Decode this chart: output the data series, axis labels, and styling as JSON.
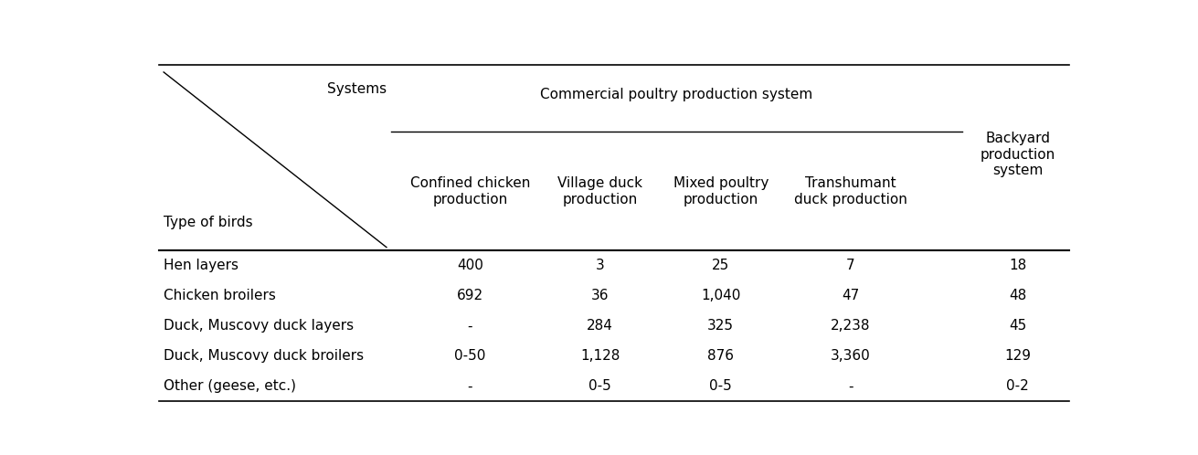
{
  "header_label_systems": "Systems",
  "header_label_type": "Type of birds",
  "commercial_header": "Commercial poultry production system",
  "backyard_header": "Backyard\nproduction\nsystem",
  "sub_headers": [
    "Confined chicken\nproduction",
    "Village duck\nproduction",
    "Mixed poultry\nproduction",
    "Transhumant\nduck production"
  ],
  "rows": [
    [
      "Hen layers",
      "400",
      "3",
      "25",
      "7",
      "18"
    ],
    [
      "Chicken broilers",
      "692",
      "36",
      "1,040",
      "47",
      "48"
    ],
    [
      "Duck, Muscovy duck layers",
      "-",
      "284",
      "325",
      "2,238",
      "45"
    ],
    [
      "Duck, Muscovy duck broilers",
      "0-50",
      "1,128",
      "876",
      "3,360",
      "129"
    ],
    [
      "Other (geese, etc.)",
      "-",
      "0-5",
      "0-5",
      "-",
      "0-2"
    ]
  ],
  "background_color": "#ffffff",
  "text_color": "#000000",
  "font_size": 11,
  "figwidth": 13.11,
  "figheight": 4.98,
  "dpi": 100
}
